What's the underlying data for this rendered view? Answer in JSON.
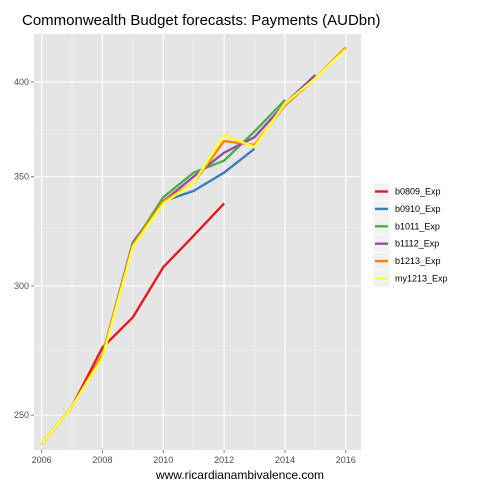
{
  "chart_data": {
    "type": "line",
    "title": "Commonwealth Budget forecasts: Payments (AUDbn)",
    "xlabel": "www.ricardianambivalence.com",
    "ylabel": "",
    "x_ticks": [
      2006,
      2008,
      2010,
      2012,
      2014,
      2016
    ],
    "y_ticks": [
      250,
      300,
      350,
      400
    ],
    "y_scale": "log",
    "xlim": [
      2005.75,
      2016.5
    ],
    "ylim": [
      238,
      428
    ],
    "grid": true,
    "legend_position": "right",
    "series": [
      {
        "name": "b0809_Exp",
        "color": "#e41a1c",
        "x": [
          2006,
          2007,
          2008,
          2009,
          2010,
          2011,
          2012
        ],
        "values": [
          240,
          253,
          275,
          287,
          308,
          322,
          337
        ]
      },
      {
        "name": "b0910_Exp",
        "color": "#377eb8",
        "x": [
          2006,
          2007,
          2008,
          2009,
          2010,
          2011,
          2012,
          2013
        ],
        "values": [
          240,
          253,
          272,
          319,
          338,
          343,
          352,
          364
        ]
      },
      {
        "name": "b1011_Exp",
        "color": "#4daf4a",
        "x": [
          2006,
          2007,
          2008,
          2009,
          2010,
          2011,
          2012,
          2013,
          2014
        ],
        "values": [
          240,
          253,
          272,
          318,
          340,
          352,
          358,
          373,
          390
        ]
      },
      {
        "name": "b1112_Exp",
        "color": "#984ea3",
        "x": [
          2006,
          2007,
          2008,
          2009,
          2010,
          2011,
          2012,
          2013,
          2014,
          2015
        ],
        "values": [
          240,
          253,
          272,
          318,
          338,
          350,
          362,
          370,
          388,
          404
        ]
      },
      {
        "name": "b1213_Exp",
        "color": "#ff7f00",
        "x": [
          2006,
          2007,
          2008,
          2009,
          2010,
          2011,
          2012,
          2013,
          2014,
          2015,
          2016
        ],
        "values": [
          240,
          253,
          272,
          318,
          338,
          347,
          368,
          366,
          387,
          402,
          420
        ]
      },
      {
        "name": "my1213_Exp",
        "color": "#ffff33",
        "x": [
          2006,
          2007,
          2008,
          2009,
          2010,
          2011,
          2012,
          2013,
          2014,
          2015,
          2016
        ],
        "values": [
          240,
          253,
          271,
          317,
          337,
          347,
          371,
          365,
          388,
          402,
          419
        ]
      }
    ]
  }
}
